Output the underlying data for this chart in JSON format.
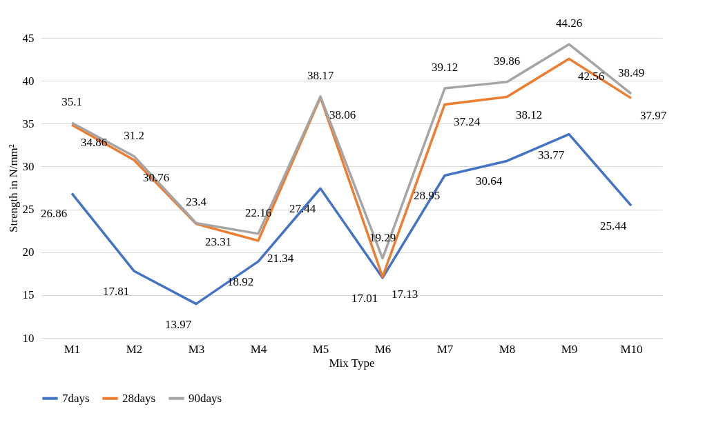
{
  "chart_data": {
    "type": "line",
    "xlabel": "Mix Type",
    "ylabel": "Strength in N/mm²",
    "categories": [
      "M1",
      "M2",
      "M3",
      "M4",
      "M5",
      "M6",
      "M7",
      "M8",
      "M9",
      "M10"
    ],
    "series": [
      {
        "name": "7days",
        "color": "#4472c4",
        "values": [
          26.86,
          17.81,
          13.97,
          18.92,
          27.44,
          17.01,
          28.95,
          30.64,
          33.77,
          25.44
        ]
      },
      {
        "name": "28days",
        "color": "#ed7d31",
        "values": [
          34.86,
          30.76,
          23.31,
          21.34,
          38.06,
          17.13,
          37.24,
          38.12,
          42.56,
          37.97
        ]
      },
      {
        "name": "90days",
        "color": "#a5a5a5",
        "values": [
          35.1,
          31.2,
          23.4,
          22.16,
          38.17,
          19.29,
          39.12,
          39.86,
          44.26,
          38.49
        ]
      }
    ],
    "ylim": [
      10,
      45
    ],
    "yticks": [
      10,
      15,
      20,
      25,
      30,
      35,
      40,
      45
    ],
    "grid": "y",
    "legend": "bottom",
    "data_labels": true,
    "line_style": "solid",
    "marker": "none"
  }
}
